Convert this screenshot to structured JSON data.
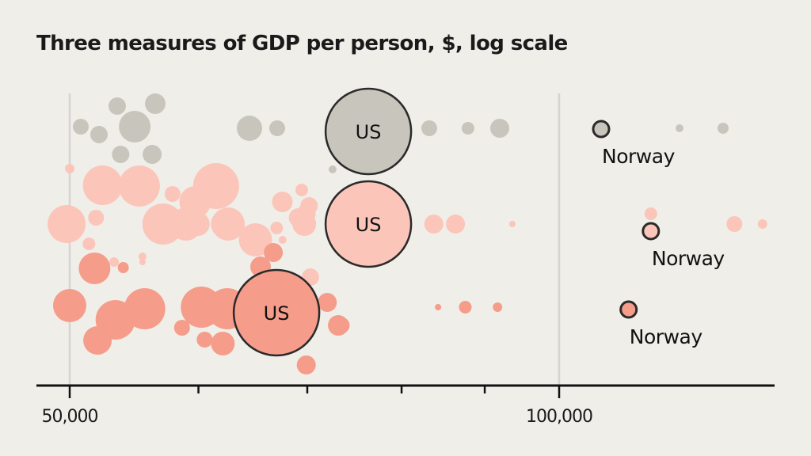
{
  "title": "Three measures of GDP per person, $, log scale",
  "chart_data": {
    "type": "scatter",
    "subtype": "beeswarm bubble",
    "title": "Three measures of GDP per person, $, log scale",
    "xlabel": "",
    "ylabel": "",
    "x_scale": "log",
    "xlim": [
      48000,
      132000
    ],
    "x_ticks": [
      50000,
      60000,
      70000,
      80000,
      90000,
      100000
    ],
    "x_tick_labels": [
      "50,000",
      "",
      "",
      "",
      "",
      "100,000"
    ],
    "reference_lines": [
      50000,
      100000
    ],
    "grid": false,
    "legend": "none",
    "colors": {
      "measure_1": "#c8c6bc",
      "measure_2": "#fbc6b9",
      "measure_3": "#f59d8a",
      "highlight_stroke": "#2a2a2a",
      "axis": "#111111",
      "ref_line": "#d4d4d4",
      "background": "#f0eee9"
    },
    "series": [
      {
        "name": "measure_1",
        "highlights": [
          {
            "label": "US",
            "value": 76320,
            "size": 54
          },
          {
            "label": "Norway",
            "value": 106120,
            "size": 10
          }
        ],
        "values": [
          53480,
          56440,
          50790,
          52120,
          54820,
          53740,
          56190,
          64500,
          67080,
          72550,
          83200,
          87890,
          91930,
          118590,
          126140
        ],
        "sizes": [
          11,
          13,
          10,
          11,
          20,
          11,
          12,
          16,
          10,
          5,
          10,
          8,
          12,
          5,
          7
        ]
      },
      {
        "name": "measure_2",
        "highlights": [
          {
            "label": "US",
            "value": 76320,
            "size": 54
          },
          {
            "label": "Norway",
            "value": 113870,
            "size": 10
          }
        ],
        "values": [
          50000,
          52390,
          55180,
          55720,
          57840,
          59730,
          61520,
          62580,
          67570,
          69450,
          69700,
          69880,
          70170,
          49780,
          51900,
          57060,
          58940,
          62310,
          65050,
          67590,
          55430,
          55430,
          59950,
          63440,
          69120,
          67030,
          83730,
          86350,
          93590,
          113870,
          128170,
          133380,
          51380,
          53250,
          70310
        ],
        "sizes": [
          6,
          25,
          26,
          10,
          10,
          20,
          29,
          21,
          13,
          8,
          15,
          12,
          11,
          24,
          10,
          26,
          21,
          18,
          21,
          5,
          4,
          5,
          15,
          5,
          12,
          8,
          12,
          12,
          4,
          8,
          10,
          6,
          8,
          6,
          11
        ]
      },
      {
        "name": "measure_3",
        "highlights": [
          {
            "label": "US",
            "value": 67010,
            "size": 54
          },
          {
            "label": "Norway",
            "value": 110340,
            "size": 10
          }
        ],
        "values": [
          51790,
          55600,
          50000,
          53340,
          52010,
          53940,
          60250,
          58620,
          60530,
          62110,
          64530,
          66710,
          69900,
          65520,
          68590,
          72010,
          73140,
          73500,
          84240,
          87550,
          91640,
          65400,
          62500
        ],
        "sizes": [
          20,
          26,
          21,
          25,
          18,
          7,
          26,
          10,
          10,
          15,
          4,
          12,
          12,
          13,
          12,
          12,
          13,
          10,
          4,
          8,
          6,
          10,
          26
        ]
      }
    ]
  }
}
